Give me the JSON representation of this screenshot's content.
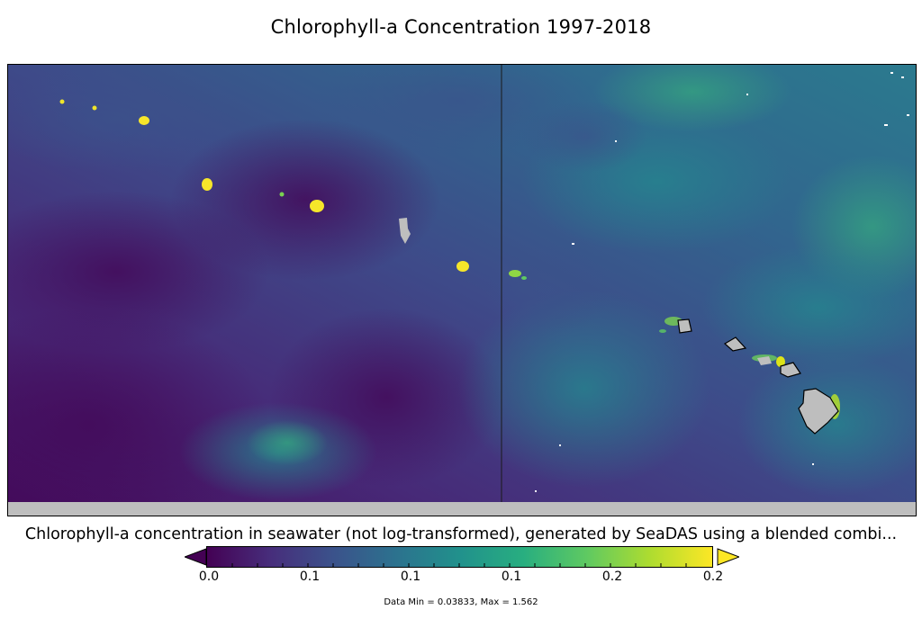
{
  "title": "Chlorophyll-a Concentration 1997-2018",
  "description": "Chlorophyll-a concentration in seawater (not log-transformed), generated by SeaDAS using a blended combi...",
  "colorbar": {
    "colormap": "viridis",
    "colors": [
      "#440154",
      "#3b528b",
      "#21918c",
      "#5ec962",
      "#fde725"
    ],
    "ticks": [
      "0.0",
      "0.1",
      "0.1",
      "0.1",
      "0.2",
      "0.2"
    ],
    "extend": "both"
  },
  "stats_text": "Data Min = 0.03833, Max = 1.562",
  "map": {
    "land_color": "#bebebe",
    "no_data_color": "#bebebe",
    "meridian_line": true
  }
}
